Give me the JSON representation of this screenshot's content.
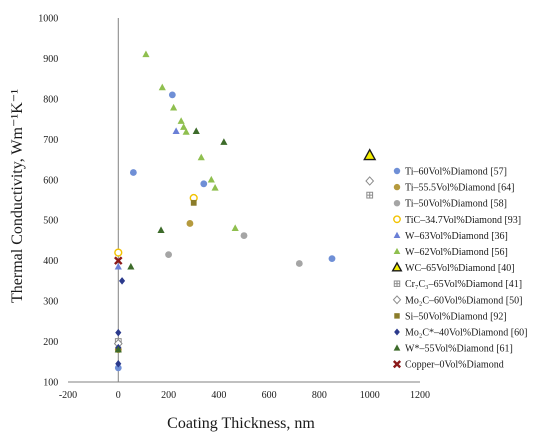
{
  "chart_data": {
    "type": "scatter",
    "xlabel": "Coating Thickness, nm",
    "ylabel": "Thermal Conductivity, Wm⁻¹K⁻¹",
    "xlim": [
      -200,
      1200
    ],
    "ylim": [
      100,
      1000
    ],
    "xticks": [
      -200,
      0,
      200,
      400,
      600,
      800,
      1000,
      1200
    ],
    "yticks": [
      100,
      200,
      300,
      400,
      500,
      600,
      700,
      800,
      900,
      1000
    ],
    "grid": false,
    "legend_position": "right",
    "series": [
      {
        "name": "Ti–60Vol%Diamond  [57]",
        "marker": "circle",
        "color": "#6f8fd6",
        "points": [
          [
            60,
            618
          ],
          [
            215,
            810
          ],
          [
            340,
            590
          ],
          [
            850,
            405
          ],
          [
            0,
            135
          ]
        ]
      },
      {
        "name": "Ti–55.5Vol%Diamond  [64]",
        "marker": "circle",
        "color": "#b59a3e",
        "points": [
          [
            285,
            492
          ],
          [
            0,
            180
          ]
        ]
      },
      {
        "name": "Ti–50Vol%Diamond  [58]",
        "marker": "circle",
        "color": "#a5a5a5",
        "points": [
          [
            200,
            415
          ],
          [
            500,
            462
          ],
          [
            720,
            393
          ]
        ]
      },
      {
        "name": "TiC–34.7Vol%Diamond  [93]",
        "marker": "circle-open",
        "color": "#f2c200",
        "points": [
          [
            0,
            420
          ],
          [
            300,
            555
          ]
        ]
      },
      {
        "name": "W–63Vol%Diamond  [36]",
        "marker": "triangle",
        "color": "#6a7fd6",
        "points": [
          [
            230,
            720
          ],
          [
            0,
            385
          ]
        ]
      },
      {
        "name": "W–62Vol%Diamond  [56]",
        "marker": "triangle",
        "color": "#8fbf4f",
        "points": [
          [
            110,
            910
          ],
          [
            175,
            828
          ],
          [
            220,
            778
          ],
          [
            250,
            745
          ],
          [
            260,
            730
          ],
          [
            270,
            718
          ],
          [
            330,
            655
          ],
          [
            370,
            600
          ],
          [
            385,
            580
          ],
          [
            465,
            480
          ]
        ]
      },
      {
        "name": "WC–65Vol%Diamond  [40]",
        "marker": "triangle-open",
        "color": "#1a1a1a",
        "points": [
          [
            1000,
            660
          ]
        ]
      },
      {
        "name": "Cr₇C₃–65Vol%Diamond  [41]",
        "marker": "square-plus",
        "color": "#8c8c8c",
        "points": [
          [
            1000,
            562
          ],
          [
            0,
            200
          ]
        ]
      },
      {
        "name": "Mo₂C–60Vol%Diamond  [50]",
        "marker": "diamond-open",
        "color": "#8c8c8c",
        "points": [
          [
            1000,
            597
          ],
          [
            0,
            195
          ]
        ]
      },
      {
        "name": "Si–50Vol%Diamond  [92]",
        "marker": "square",
        "color": "#8b7c2a",
        "points": [
          [
            300,
            543
          ],
          [
            0,
            180
          ]
        ]
      },
      {
        "name": "Mo₂C*–40Vol%Diamond  [60]",
        "marker": "diamond",
        "color": "#2b3a8c",
        "points": [
          [
            0,
            222
          ],
          [
            15,
            350
          ],
          [
            0,
            185
          ],
          [
            0,
            145
          ]
        ]
      },
      {
        "name": "W*–55Vol%Diamond  [61]",
        "marker": "triangle",
        "color": "#3d6b2a",
        "points": [
          [
            310,
            720
          ],
          [
            420,
            693
          ],
          [
            170,
            475
          ],
          [
            50,
            385
          ],
          [
            0,
            180
          ]
        ]
      },
      {
        "name": "Copper–0Vol%Diamond",
        "marker": "cross",
        "color": "#8b1a1a",
        "points": [
          [
            0,
            400
          ]
        ]
      }
    ]
  }
}
